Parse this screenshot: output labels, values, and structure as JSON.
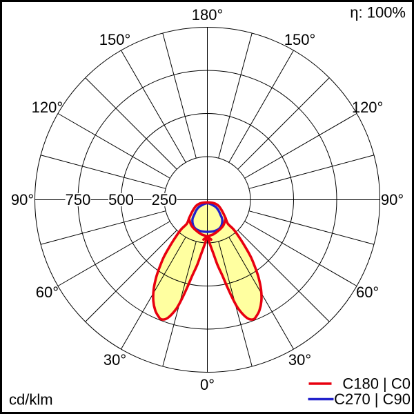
{
  "chart_data": {
    "type": "polar",
    "description": "Photometric luminous intensity distribution (polar diagram), 0 deg at nadir (bottom), values in cd/klm",
    "units_label": "cd/klm",
    "efficiency_label": "η: 100%",
    "scale_max": 1000,
    "rings": [
      250,
      500,
      750,
      1000
    ],
    "radial_step_deg": 15,
    "radius_ticks": [
      {
        "label": "250",
        "value": 250
      },
      {
        "label": "500",
        "value": 500
      },
      {
        "label": "750",
        "value": 750
      }
    ],
    "angle_labels": [
      {
        "text": "180°",
        "gamma": 180
      },
      {
        "text": "150°",
        "gamma": -150
      },
      {
        "text": "150°",
        "gamma": 150
      },
      {
        "text": "120°",
        "gamma": -120
      },
      {
        "text": "120°",
        "gamma": 120
      },
      {
        "text": "90°",
        "gamma": -90
      },
      {
        "text": "90°",
        "gamma": 90
      },
      {
        "text": "60°",
        "gamma": -60
      },
      {
        "text": "60°",
        "gamma": 60
      },
      {
        "text": "30°",
        "gamma": -30
      },
      {
        "text": "30°",
        "gamma": 30
      },
      {
        "text": "0°",
        "gamma": 0
      }
    ],
    "series": [
      {
        "name": "C180 | C0",
        "color": "#e8000f",
        "fill": "#ffffa0",
        "closed": true,
        "value_at_0_deg": 213,
        "peak": {
          "gamma_deg": 21,
          "value": 743
        },
        "beam_cutoff_deg": 41,
        "points": [
          [
            0,
            15
          ],
          [
            -63,
            45
          ],
          [
            -62,
            72
          ],
          [
            -55,
            98
          ],
          [
            -49,
            125
          ],
          [
            -44.5,
            151
          ],
          [
            -40.6,
            184
          ],
          [
            -41.5,
            231
          ],
          [
            -40.3,
            289
          ],
          [
            -38.8,
            351
          ],
          [
            -37.2,
            419
          ],
          [
            -35,
            488
          ],
          [
            -33.3,
            542
          ],
          [
            -30.9,
            606
          ],
          [
            -28.1,
            665
          ],
          [
            -25.3,
            708
          ],
          [
            -23,
            731
          ],
          [
            -21,
            743
          ],
          [
            -18.5,
            722
          ],
          [
            -15.9,
            658
          ],
          [
            -14.4,
            592
          ],
          [
            -12.9,
            520
          ],
          [
            -11.2,
            448
          ],
          [
            -8.7,
            378
          ],
          [
            -6.2,
            309
          ],
          [
            -3,
            253
          ],
          [
            0,
            213
          ],
          [
            3,
            253
          ],
          [
            6.2,
            309
          ],
          [
            8.7,
            378
          ],
          [
            11.2,
            448
          ],
          [
            12.9,
            520
          ],
          [
            14.4,
            592
          ],
          [
            15.9,
            658
          ],
          [
            18.5,
            722
          ],
          [
            21,
            743
          ],
          [
            23,
            731
          ],
          [
            25.3,
            708
          ],
          [
            28.1,
            665
          ],
          [
            30.9,
            606
          ],
          [
            33.3,
            542
          ],
          [
            35,
            488
          ],
          [
            37.2,
            419
          ],
          [
            38.8,
            351
          ],
          [
            40.3,
            289
          ],
          [
            41.5,
            231
          ],
          [
            40.6,
            184
          ],
          [
            44.5,
            151
          ],
          [
            49,
            125
          ],
          [
            55,
            98
          ],
          [
            62,
            72
          ],
          [
            63,
            45
          ]
        ],
        "extra_strokes": [
          [
            [
              -44.5,
              152
            ],
            [
              -32,
              175
            ],
            [
              -21,
              189
            ],
            [
              -10,
              203
            ],
            [
              0,
              213
            ],
            [
              5.5,
              232
            ]
          ],
          [
            [
              44.5,
              152
            ],
            [
              32,
              175
            ],
            [
              21,
              189
            ],
            [
              10,
              203
            ],
            [
              0,
              213
            ],
            [
              -5.5,
              232
            ]
          ]
        ]
      },
      {
        "name": "C270 | C90",
        "color": "#2121cc",
        "fill": null,
        "closed": true,
        "value_at_0_deg": 186,
        "points": [
          [
            0,
            20
          ],
          [
            -49,
            60
          ],
          [
            -46,
            90
          ],
          [
            -41,
            117
          ],
          [
            -38,
            139
          ],
          [
            -33,
            158
          ],
          [
            -27,
            174
          ],
          [
            -20,
            183
          ],
          [
            -13,
            186
          ],
          [
            -6.5,
            186
          ],
          [
            0,
            186
          ],
          [
            6.5,
            186
          ],
          [
            13,
            186
          ],
          [
            20,
            183
          ],
          [
            27,
            174
          ],
          [
            33,
            158
          ],
          [
            38,
            139
          ],
          [
            41,
            117
          ],
          [
            46,
            90
          ],
          [
            49,
            60
          ]
        ]
      }
    ],
    "legend": {
      "entries": [
        {
          "label": "C180 | C0",
          "color": "#e8000f"
        },
        {
          "label": "C270 | C90",
          "color": "#2121cc"
        }
      ]
    }
  }
}
